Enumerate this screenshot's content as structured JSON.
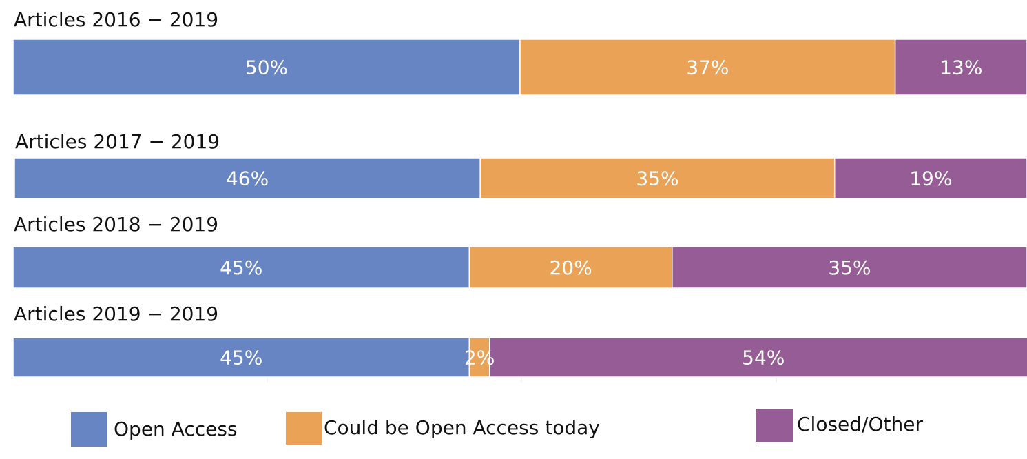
{
  "chart_data": {
    "type": "bar",
    "orientation": "horizontal",
    "stacked": true,
    "percent": true,
    "xlim": [
      0,
      100
    ],
    "grid": false,
    "legend_position": "bottom",
    "categories": [
      "Articles 2016 − 2019",
      "Articles 2017 − 2019",
      "Articles 2018 − 2019",
      "Articles 2019 − 2019"
    ],
    "series": [
      {
        "name": "Open Access",
        "color": "#6685c2",
        "values": [
          50,
          46,
          45,
          45
        ],
        "labels": [
          "50%",
          "46%",
          "45%",
          "45%"
        ]
      },
      {
        "name": "Could be Open Access today",
        "color": "#eaa256",
        "values": [
          37,
          35,
          20,
          2
        ],
        "labels": [
          "37%",
          "35%",
          "20%",
          "2%"
        ]
      },
      {
        "name": "Closed/Other",
        "color": "#955c95",
        "values": [
          13,
          19,
          35,
          54
        ],
        "labels": [
          "13%",
          "19%",
          "35%",
          "54%"
        ]
      }
    ]
  }
}
